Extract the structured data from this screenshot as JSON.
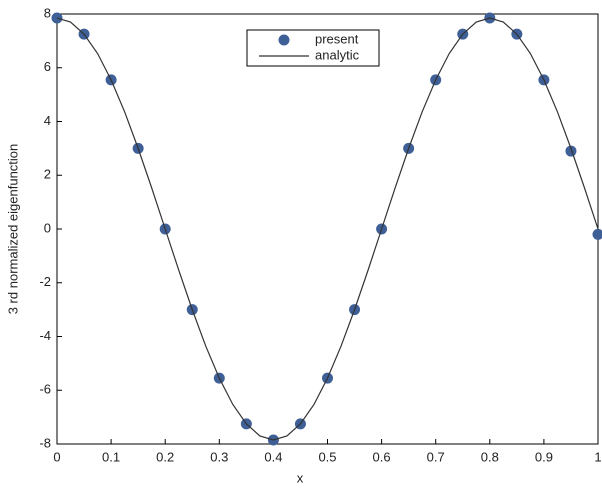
{
  "chart_data": {
    "type": "line",
    "xlabel": "x",
    "ylabel": "3 rd normalized eigenfunction",
    "xlim": [
      0,
      1
    ],
    "xticks": [
      0,
      0.1,
      0.2,
      0.3,
      0.4,
      0.5,
      0.6,
      0.7,
      0.8,
      0.9,
      1
    ],
    "ylim": [
      -8,
      8
    ],
    "yticks": [
      -8,
      -6,
      -4,
      -2,
      0,
      2,
      4,
      6,
      8
    ],
    "legend": "top-center",
    "series": [
      {
        "name": "present",
        "color": "#3f5f97",
        "mode": "markers",
        "x": [
          0,
          0.05,
          0.1,
          0.15,
          0.2,
          0.25,
          0.3,
          0.35,
          0.4,
          0.45,
          0.5,
          0.55,
          0.6,
          0.65,
          0.7,
          0.75,
          0.8,
          0.85,
          0.9,
          0.95,
          1
        ],
        "values": [
          7.85,
          7.25,
          5.55,
          3.0,
          0,
          -3.0,
          -5.55,
          -7.25,
          -7.85,
          -7.25,
          -5.55,
          -3.0,
          0,
          3.0,
          5.55,
          7.25,
          7.85,
          7.25,
          5.55,
          2.9,
          -0.2
        ]
      },
      {
        "name": "analytic",
        "color": "#333333",
        "mode": "line",
        "x": [
          0,
          0.025,
          0.05,
          0.075,
          0.1,
          0.125,
          0.15,
          0.175,
          0.2,
          0.225,
          0.25,
          0.275,
          0.3,
          0.325,
          0.35,
          0.375,
          0.4,
          0.425,
          0.45,
          0.475,
          0.5,
          0.525,
          0.55,
          0.575,
          0.6,
          0.625,
          0.65,
          0.675,
          0.7,
          0.725,
          0.75,
          0.775,
          0.8,
          0.825,
          0.85,
          0.875,
          0.9,
          0.925,
          0.95,
          0.975,
          1
        ],
        "values": [
          7.85,
          7.7,
          7.25,
          6.53,
          5.55,
          4.36,
          3.0,
          1.53,
          0,
          -1.53,
          -3.0,
          -4.36,
          -5.55,
          -6.53,
          -7.25,
          -7.7,
          -7.85,
          -7.7,
          -7.25,
          -6.53,
          -5.55,
          -4.36,
          -3.0,
          -1.53,
          0,
          1.53,
          3.0,
          4.36,
          5.55,
          6.53,
          7.25,
          7.7,
          7.85,
          7.7,
          7.25,
          6.53,
          5.55,
          4.36,
          3.0,
          1.53,
          0
        ]
      }
    ]
  }
}
